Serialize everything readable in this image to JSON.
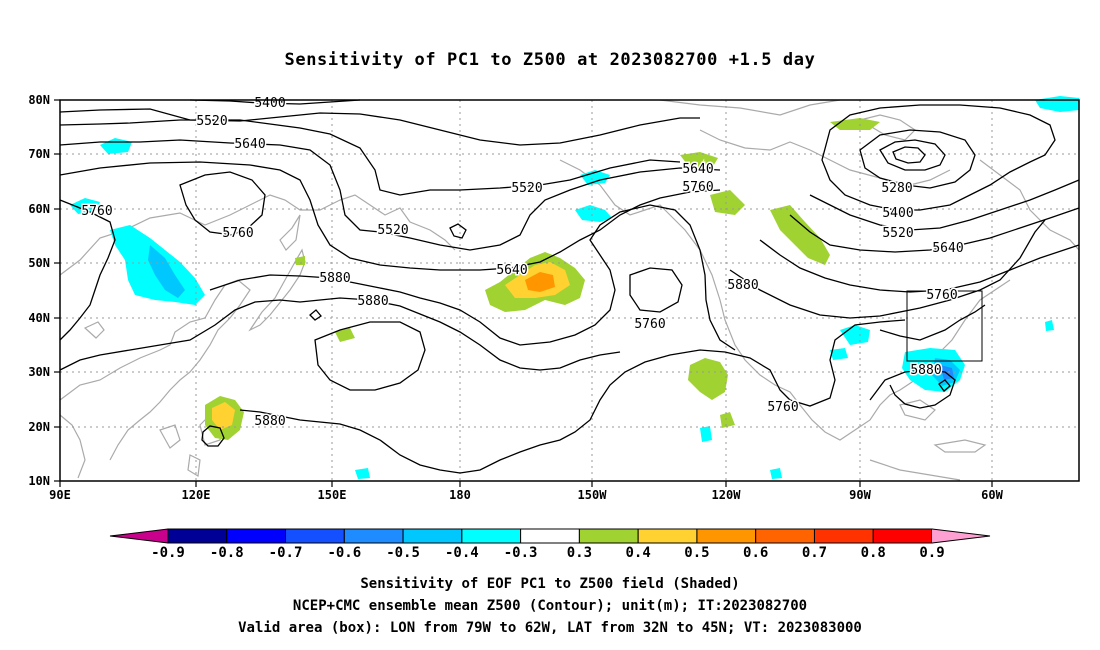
{
  "title": "Sensitivity of PC1 to Z500 at 2023082700 +1.5 day",
  "map": {
    "lat_ticks": [
      "80N",
      "70N",
      "60N",
      "50N",
      "40N",
      "30N",
      "20N",
      "10N"
    ],
    "lon_ticks": [
      "90E",
      "120E",
      "150E",
      "180",
      "150W",
      "120W",
      "90W",
      "60W"
    ],
    "contour_labels": [
      {
        "text": "5400"
      },
      {
        "text": "5520"
      },
      {
        "text": "5640"
      },
      {
        "text": "5760"
      },
      {
        "text": "5760"
      },
      {
        "text": "5520"
      },
      {
        "text": "5520"
      },
      {
        "text": "5640"
      },
      {
        "text": "5640"
      },
      {
        "text": "5760"
      },
      {
        "text": "5880"
      },
      {
        "text": "5880"
      },
      {
        "text": "5760"
      },
      {
        "text": "5880"
      },
      {
        "text": "5880"
      },
      {
        "text": "5280"
      },
      {
        "text": "5400"
      },
      {
        "text": "5520"
      },
      {
        "text": "5640"
      },
      {
        "text": "5760"
      },
      {
        "text": "5880"
      },
      {
        "text": "5760"
      }
    ],
    "valid_box": {
      "lon_from": "79W",
      "lon_to": "62W",
      "lat_from": "32N",
      "lat_to": "45N"
    }
  },
  "colorbar": {
    "labels": [
      "-0.9",
      "-0.8",
      "-0.7",
      "-0.6",
      "-0.5",
      "-0.4",
      "-0.3",
      "0.3",
      "0.4",
      "0.5",
      "0.6",
      "0.7",
      "0.8",
      "0.9"
    ],
    "colors": [
      "#000096",
      "#0000ff",
      "#1450ff",
      "#1e8cff",
      "#00c8ff",
      "#00ffff",
      "#ffffff",
      "#a0d232",
      "#ffd232",
      "#ff9600",
      "#ff6400",
      "#ff3200",
      "#ff0000"
    ],
    "low_arrow_color": "#c8008c",
    "high_arrow_color": "#ffa0d2"
  },
  "footer": {
    "line1": "Sensitivity of EOF PC1 to Z500 field (Shaded)",
    "line2": "NCEP+CMC ensemble mean Z500 (Contour); unit(m); IT:2023082700",
    "line3": "Valid area (box): LON from 79W to 62W, LAT from 32N to 45N; VT: 2023083000"
  }
}
